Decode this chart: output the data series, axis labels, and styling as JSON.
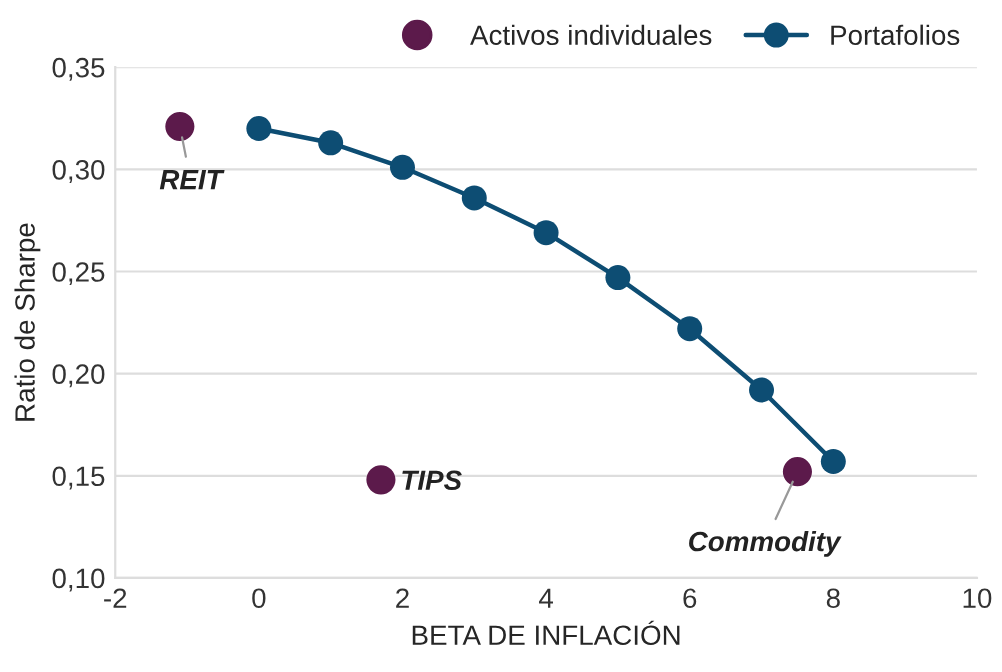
{
  "chart_data": {
    "type": "line",
    "xlabel": "BETA DE INFLACIÓN",
    "ylabel": "Ratio de Sharpe",
    "series": [
      {
        "name": "Activos individuales",
        "type": "scatter",
        "color": "#5c1a4b",
        "x": [
          -1.1,
          1.7,
          7.5
        ],
        "values": [
          0.321,
          0.148,
          0.152
        ]
      },
      {
        "name": "Portafolios",
        "color": "#0d4d73",
        "marker": "circle",
        "x": [
          0,
          1,
          2,
          3,
          4,
          5,
          6,
          7,
          8
        ],
        "values": [
          0.32,
          0.313,
          0.301,
          0.286,
          0.269,
          0.247,
          0.222,
          0.192,
          0.157
        ]
      }
    ],
    "annotations": [
      {
        "text": "REIT",
        "x": -1.1,
        "y": 0.321
      },
      {
        "text": "TIPS",
        "x": 1.7,
        "y": 0.148
      },
      {
        "text": "Commodity",
        "x": 7.5,
        "y": 0.152
      }
    ],
    "xlim": [
      -2,
      10
    ],
    "xticks": [
      -2,
      0,
      2,
      4,
      6,
      8,
      10
    ],
    "ylim": [
      0.1,
      0.35
    ],
    "yticks": [
      {
        "value": 0.1,
        "label": "0,10"
      },
      {
        "value": 0.15,
        "label": "0,15"
      },
      {
        "value": 0.2,
        "label": "0,20"
      },
      {
        "value": 0.25,
        "label": "0,25"
      },
      {
        "value": 0.3,
        "label": "0,30"
      },
      {
        "value": 0.35,
        "label": "0,35"
      }
    ],
    "grid": "y",
    "legend": "top right"
  }
}
